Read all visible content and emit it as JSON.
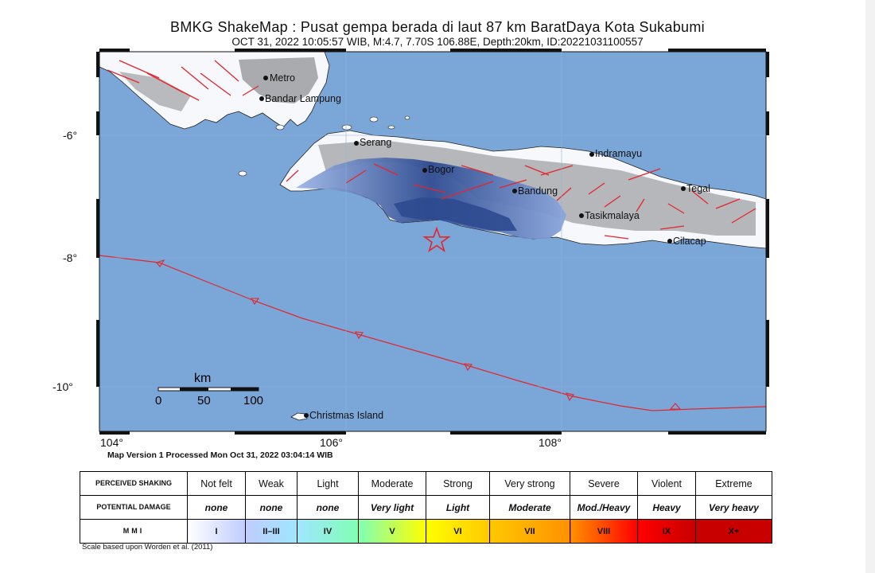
{
  "title": "BMKG ShakeMap : Pusat gempa berada di laut 87 km BaratDaya Kota Sukabumi",
  "subtitle": "OCT 31, 2022 10:05:57 WIB, M:4.7, 7.70S 106.88E, Depth:20km, ID:20221031100557",
  "map": {
    "colors": {
      "sea": "#7aa6d8",
      "land": "#f7f8fc",
      "urban": "#a9abae",
      "fault": "#e3262c",
      "shaking_strong": "#2d4a90",
      "shaking_weak": "#9db6e6",
      "epicenter": "#e3262c"
    },
    "lat_ticks": [
      "-6°",
      "-8°",
      "-10°"
    ],
    "lon_ticks": [
      "104°",
      "106°",
      "108°"
    ],
    "cities": [
      {
        "name": "Metro",
        "lat": -5.11,
        "lon": 105.31
      },
      {
        "name": "Bandar Lampung",
        "lat": -5.43,
        "lon": 105.26
      },
      {
        "name": "Serang",
        "lat": -6.12,
        "lon": 106.15
      },
      {
        "name": "Bogor",
        "lat": -6.6,
        "lon": 106.8
      },
      {
        "name": "Indramayu",
        "lat": -6.33,
        "lon": 108.32
      },
      {
        "name": "Bandung",
        "lat": -6.92,
        "lon": 107.61
      },
      {
        "name": "Tegal",
        "lat": -6.87,
        "lon": 109.14
      },
      {
        "name": "Tasikmalaya",
        "lat": -7.33,
        "lon": 108.22
      },
      {
        "name": "Cilacap",
        "lat": -7.73,
        "lon": 109.01
      },
      {
        "name": "Christmas Island",
        "lat": -10.47,
        "lon": 105.69
      }
    ],
    "epicenter": {
      "lat": -7.7,
      "lon": 106.88,
      "symbol": "star"
    },
    "scale_bar": {
      "unit": "km",
      "ticks": [
        "0",
        "50",
        "100"
      ]
    }
  },
  "version_note": "Map Version 1 Processed Mon Oct 31, 2022 03:04:14 WIB",
  "legend": {
    "row_labels": {
      "shaking": "PERCEIVED SHAKING",
      "damage": "POTENTIAL DAMAGE",
      "mmi": "MMI"
    },
    "columns": [
      {
        "shaking": "Not felt",
        "damage": "none",
        "mmi": "I",
        "color": "#ffffff"
      },
      {
        "shaking": "Weak",
        "damage": "none",
        "mmi": "II–III",
        "color": "#bfccff"
      },
      {
        "shaking": "Light",
        "damage": "none",
        "mmi": "IV",
        "color": "#a0e6ff"
      },
      {
        "shaking": "Moderate",
        "damage": "Very light",
        "mmi": "V",
        "color": "#80ffb4"
      },
      {
        "shaking": "Strong",
        "damage": "Light",
        "mmi": "VI",
        "color": "#ffff00"
      },
      {
        "shaking": "Very strong",
        "damage": "Moderate",
        "mmi": "VII",
        "color": "#ffc800"
      },
      {
        "shaking": "Severe",
        "damage": "Mod./Heavy",
        "mmi": "VIII",
        "color": "#ff9100"
      },
      {
        "shaking": "Violent",
        "damage": "Heavy",
        "mmi": "IX",
        "color": "#ff0000"
      },
      {
        "shaking": "Extreme",
        "damage": "Very heavy",
        "mmi": "X+",
        "color": "#c80000"
      }
    ]
  },
  "scale_note": "Scale based upon Worden et al. (2011)"
}
